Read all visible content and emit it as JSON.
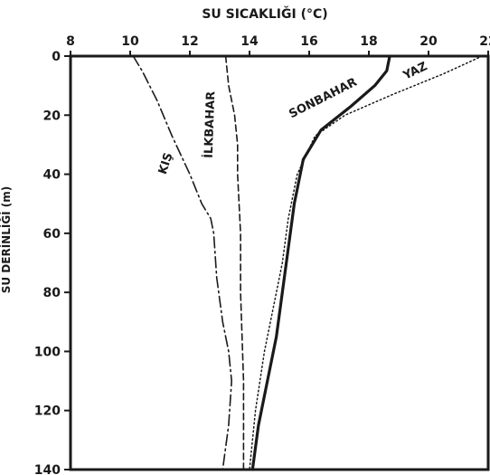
{
  "chart_data": {
    "type": "line",
    "title": "SU SICAKLIĞI (°C)",
    "xlabel": "SU SICAKLIĞI (°C)",
    "ylabel": "SU DERİNLİĞİ (m)",
    "xlim": [
      8,
      22
    ],
    "ylim": [
      0,
      140
    ],
    "y_inverted": true,
    "x_ticks": [
      "8",
      "10",
      "12",
      "14",
      "16",
      "18",
      "20",
      "22"
    ],
    "y_ticks": [
      "0",
      "20",
      "40",
      "60",
      "80",
      "100",
      "120",
      "140"
    ],
    "grid": false,
    "series": [
      {
        "name": "KIŞ",
        "style": "dash-dot",
        "x": [
          10.1,
          10.4,
          10.9,
          11.4,
          12.0,
          12.4,
          12.7,
          12.8,
          12.9,
          13.1,
          13.3,
          13.4,
          13.3,
          13.1
        ],
        "y": [
          0,
          5,
          15,
          27,
          40,
          50,
          55,
          60,
          75,
          90,
          100,
          110,
          125,
          140
        ]
      },
      {
        "name": "İLKBAHAR",
        "style": "dashed",
        "x": [
          13.2,
          13.3,
          13.5,
          13.6,
          13.6,
          13.7,
          13.7,
          13.8,
          13.8
        ],
        "y": [
          0,
          10,
          20,
          30,
          40,
          60,
          80,
          110,
          140
        ]
      },
      {
        "name": "SONBAHAR",
        "style": "solid",
        "x": [
          18.7,
          18.6,
          18.2,
          17.4,
          16.4,
          15.8,
          15.5,
          15.3,
          15.1,
          14.9,
          14.6,
          14.3,
          14.1
        ],
        "y": [
          0,
          5,
          10,
          17,
          25,
          35,
          50,
          65,
          80,
          95,
          110,
          125,
          140
        ]
      },
      {
        "name": "YAZ",
        "style": "dotted",
        "x": [
          21.8,
          20.5,
          18.8,
          17.2,
          16.2,
          15.6,
          15.3,
          15.1,
          14.8,
          14.5,
          14.2,
          14.0
        ],
        "y": [
          0,
          6,
          13,
          20,
          27,
          40,
          55,
          70,
          85,
          100,
          120,
          140
        ]
      }
    ]
  }
}
